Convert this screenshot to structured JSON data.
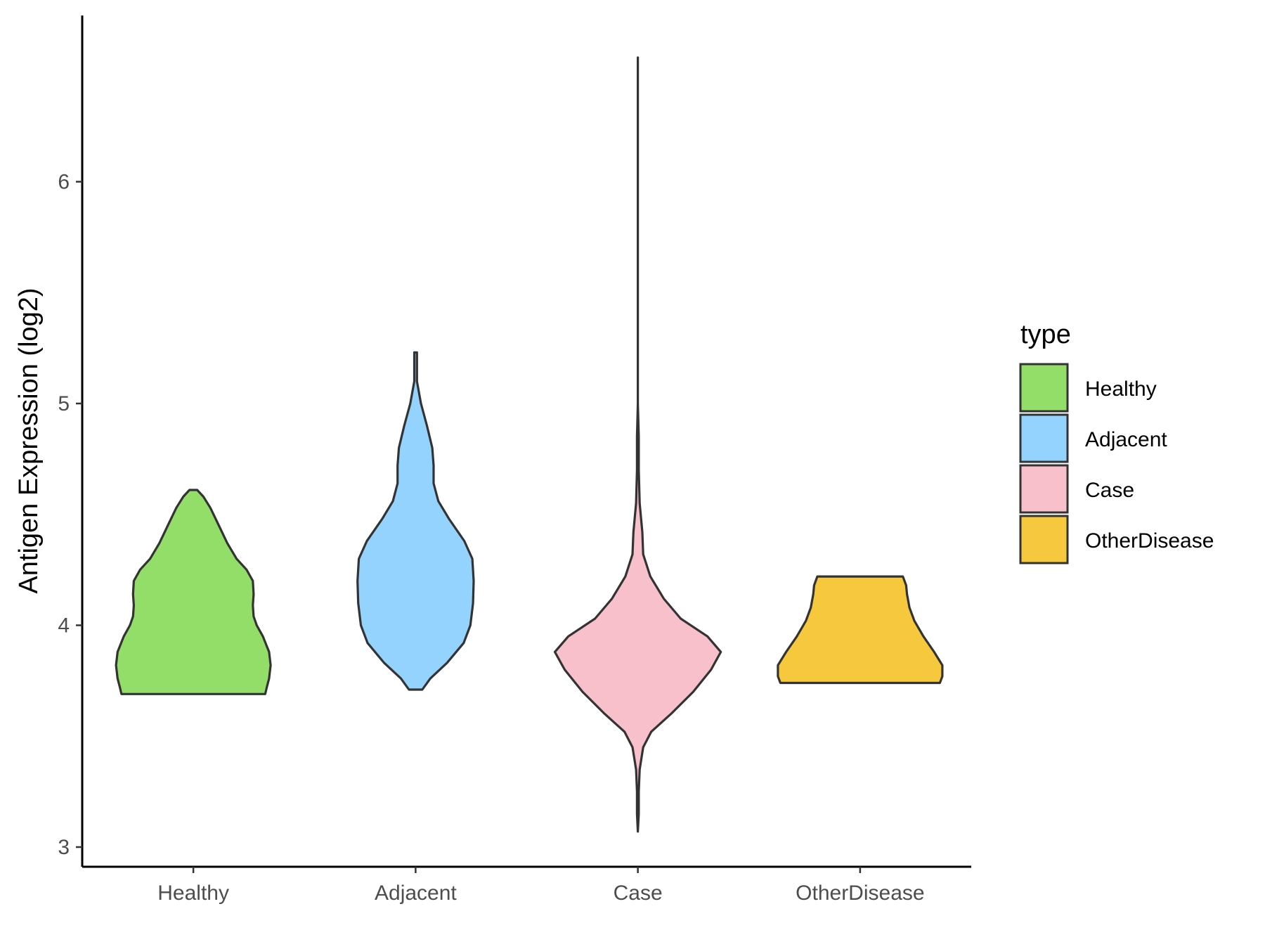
{
  "chart_data": {
    "type": "violin",
    "title": "",
    "xlabel": "",
    "ylabel": "Antigen Expression (log2)",
    "categories": [
      "Healthy",
      "Adjacent",
      "Case",
      "OtherDisease"
    ],
    "ylim": [
      2.95,
      6.78
    ],
    "yticks": [
      3,
      4,
      5,
      6
    ],
    "colors": {
      "Healthy": "#93dd69",
      "Adjacent": "#93d3fd",
      "Case": "#f7c0ca",
      "OtherDisease": "#f6c83e",
      "outline": "#333333"
    },
    "legend": {
      "title": "type",
      "position": "right",
      "entries": [
        "Healthy",
        "Adjacent",
        "Case",
        "OtherDisease"
      ]
    },
    "violins": [
      {
        "name": "Healthy",
        "half_width_scale": 110,
        "profile": [
          [
            3.69,
            0.93
          ],
          [
            3.72,
            0.95
          ],
          [
            3.76,
            0.98
          ],
          [
            3.82,
            1.0
          ],
          [
            3.88,
            0.98
          ],
          [
            3.95,
            0.9
          ],
          [
            4.0,
            0.82
          ],
          [
            4.04,
            0.78
          ],
          [
            4.09,
            0.77
          ],
          [
            4.14,
            0.78
          ],
          [
            4.2,
            0.77
          ],
          [
            4.25,
            0.69
          ],
          [
            4.3,
            0.56
          ],
          [
            4.37,
            0.44
          ],
          [
            4.45,
            0.33
          ],
          [
            4.53,
            0.22
          ],
          [
            4.58,
            0.13
          ],
          [
            4.61,
            0.05
          ]
        ]
      },
      {
        "name": "Adjacent",
        "half_width_scale": 95,
        "profile": [
          [
            3.71,
            0.1
          ],
          [
            3.76,
            0.22
          ],
          [
            3.83,
            0.47
          ],
          [
            3.92,
            0.72
          ],
          [
            4.0,
            0.82
          ],
          [
            4.1,
            0.86
          ],
          [
            4.2,
            0.87
          ],
          [
            4.3,
            0.85
          ],
          [
            4.38,
            0.73
          ],
          [
            4.48,
            0.5
          ],
          [
            4.56,
            0.34
          ],
          [
            4.64,
            0.27
          ],
          [
            4.72,
            0.27
          ],
          [
            4.8,
            0.25
          ],
          [
            4.9,
            0.17
          ],
          [
            5.0,
            0.08
          ],
          [
            5.1,
            0.02
          ],
          [
            5.2,
            0.02
          ],
          [
            5.23,
            0.02
          ]
        ]
      },
      {
        "name": "Case",
        "half_width_scale": 127,
        "profile": [
          [
            3.07,
            0.0
          ],
          [
            3.15,
            0.01
          ],
          [
            3.25,
            0.01
          ],
          [
            3.35,
            0.02
          ],
          [
            3.45,
            0.06
          ],
          [
            3.52,
            0.15
          ],
          [
            3.6,
            0.37
          ],
          [
            3.7,
            0.62
          ],
          [
            3.8,
            0.82
          ],
          [
            3.88,
            0.93
          ],
          [
            3.95,
            0.78
          ],
          [
            4.03,
            0.48
          ],
          [
            4.12,
            0.29
          ],
          [
            4.22,
            0.14
          ],
          [
            4.32,
            0.06
          ],
          [
            4.42,
            0.05
          ],
          [
            4.55,
            0.02
          ],
          [
            4.7,
            0.01
          ],
          [
            4.85,
            0.01
          ],
          [
            5.0,
            0.0
          ],
          [
            5.5,
            0.0
          ],
          [
            6.0,
            0.0
          ],
          [
            6.56,
            0.0
          ]
        ]
      },
      {
        "name": "OtherDisease",
        "half_width_scale": 117,
        "profile": [
          [
            3.74,
            0.97
          ],
          [
            3.77,
            1.0
          ],
          [
            3.82,
            1.0
          ],
          [
            3.88,
            0.9
          ],
          [
            3.95,
            0.77
          ],
          [
            4.02,
            0.66
          ],
          [
            4.08,
            0.6
          ],
          [
            4.14,
            0.57
          ],
          [
            4.18,
            0.56
          ],
          [
            4.22,
            0.52
          ]
        ]
      }
    ]
  }
}
